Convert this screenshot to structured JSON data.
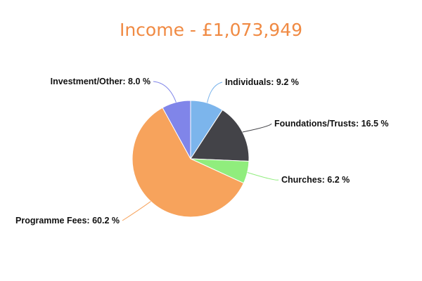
{
  "chart_data": {
    "type": "pie",
    "title": "Income - £1,073,949",
    "slices": [
      {
        "label": "Individuals",
        "value": 9.2,
        "display": "Individuals: 9.2 %",
        "color": "#7cb5ec"
      },
      {
        "label": "Foundations/Trusts",
        "value": 16.5,
        "display": "Foundations/Trusts: 16.5 %",
        "color": "#434348"
      },
      {
        "label": "Churches",
        "value": 6.2,
        "display": "Churches: 6.2 %",
        "color": "#90ed7d"
      },
      {
        "label": "Programme Fees",
        "value": 60.2,
        "display": "Programme Fees: 60.2 %",
        "color": "#f7a35c"
      },
      {
        "label": "Investment/Other",
        "value": 8.0,
        "display": "Investment/Other: 8.0 %",
        "color": "#8085e9"
      }
    ],
    "start_angle_deg": 0,
    "direction": "clockwise",
    "legend": "none",
    "data_labels": "outside"
  }
}
